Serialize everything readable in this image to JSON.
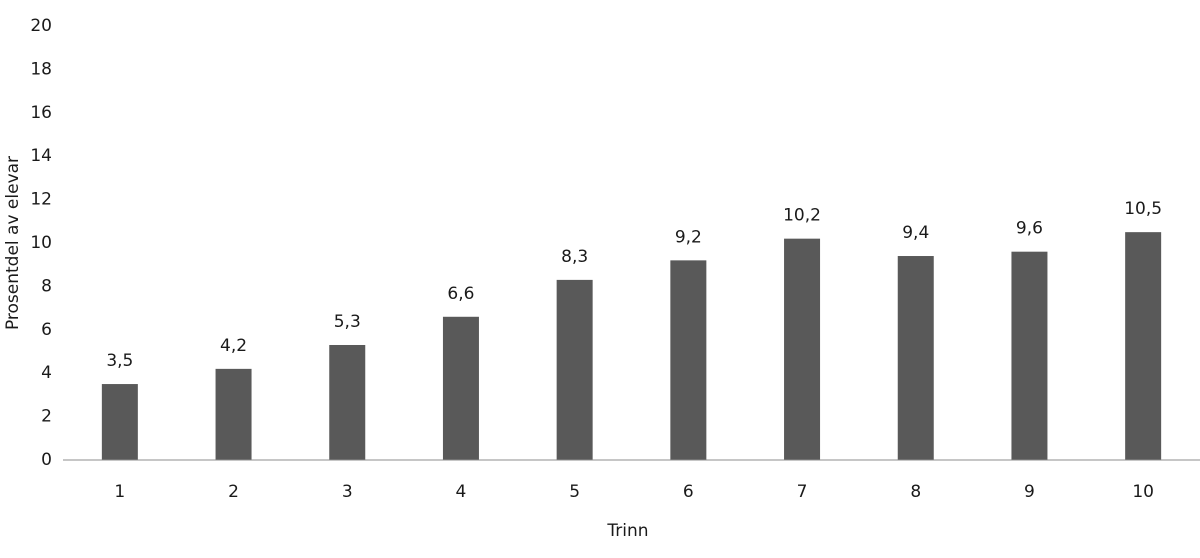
{
  "chart_data": {
    "type": "bar",
    "x_label": "Trinn",
    "y_label": "Prosentdel av elevar",
    "categories": [
      "1",
      "2",
      "3",
      "4",
      "5",
      "6",
      "7",
      "8",
      "9",
      "10"
    ],
    "values": [
      3.5,
      4.2,
      5.3,
      6.6,
      8.3,
      9.2,
      10.2,
      9.4,
      9.6,
      10.5
    ],
    "value_labels": [
      "3,5",
      "4,2",
      "5,3",
      "6,6",
      "8,3",
      "9,2",
      "10,2",
      "9,4",
      "9,6",
      "10,5"
    ],
    "color": "#595959",
    "ylim": [
      0,
      20
    ],
    "yticks": [
      0,
      2,
      4,
      6,
      8,
      10,
      12,
      14,
      16,
      18,
      20
    ],
    "grid": false
  }
}
